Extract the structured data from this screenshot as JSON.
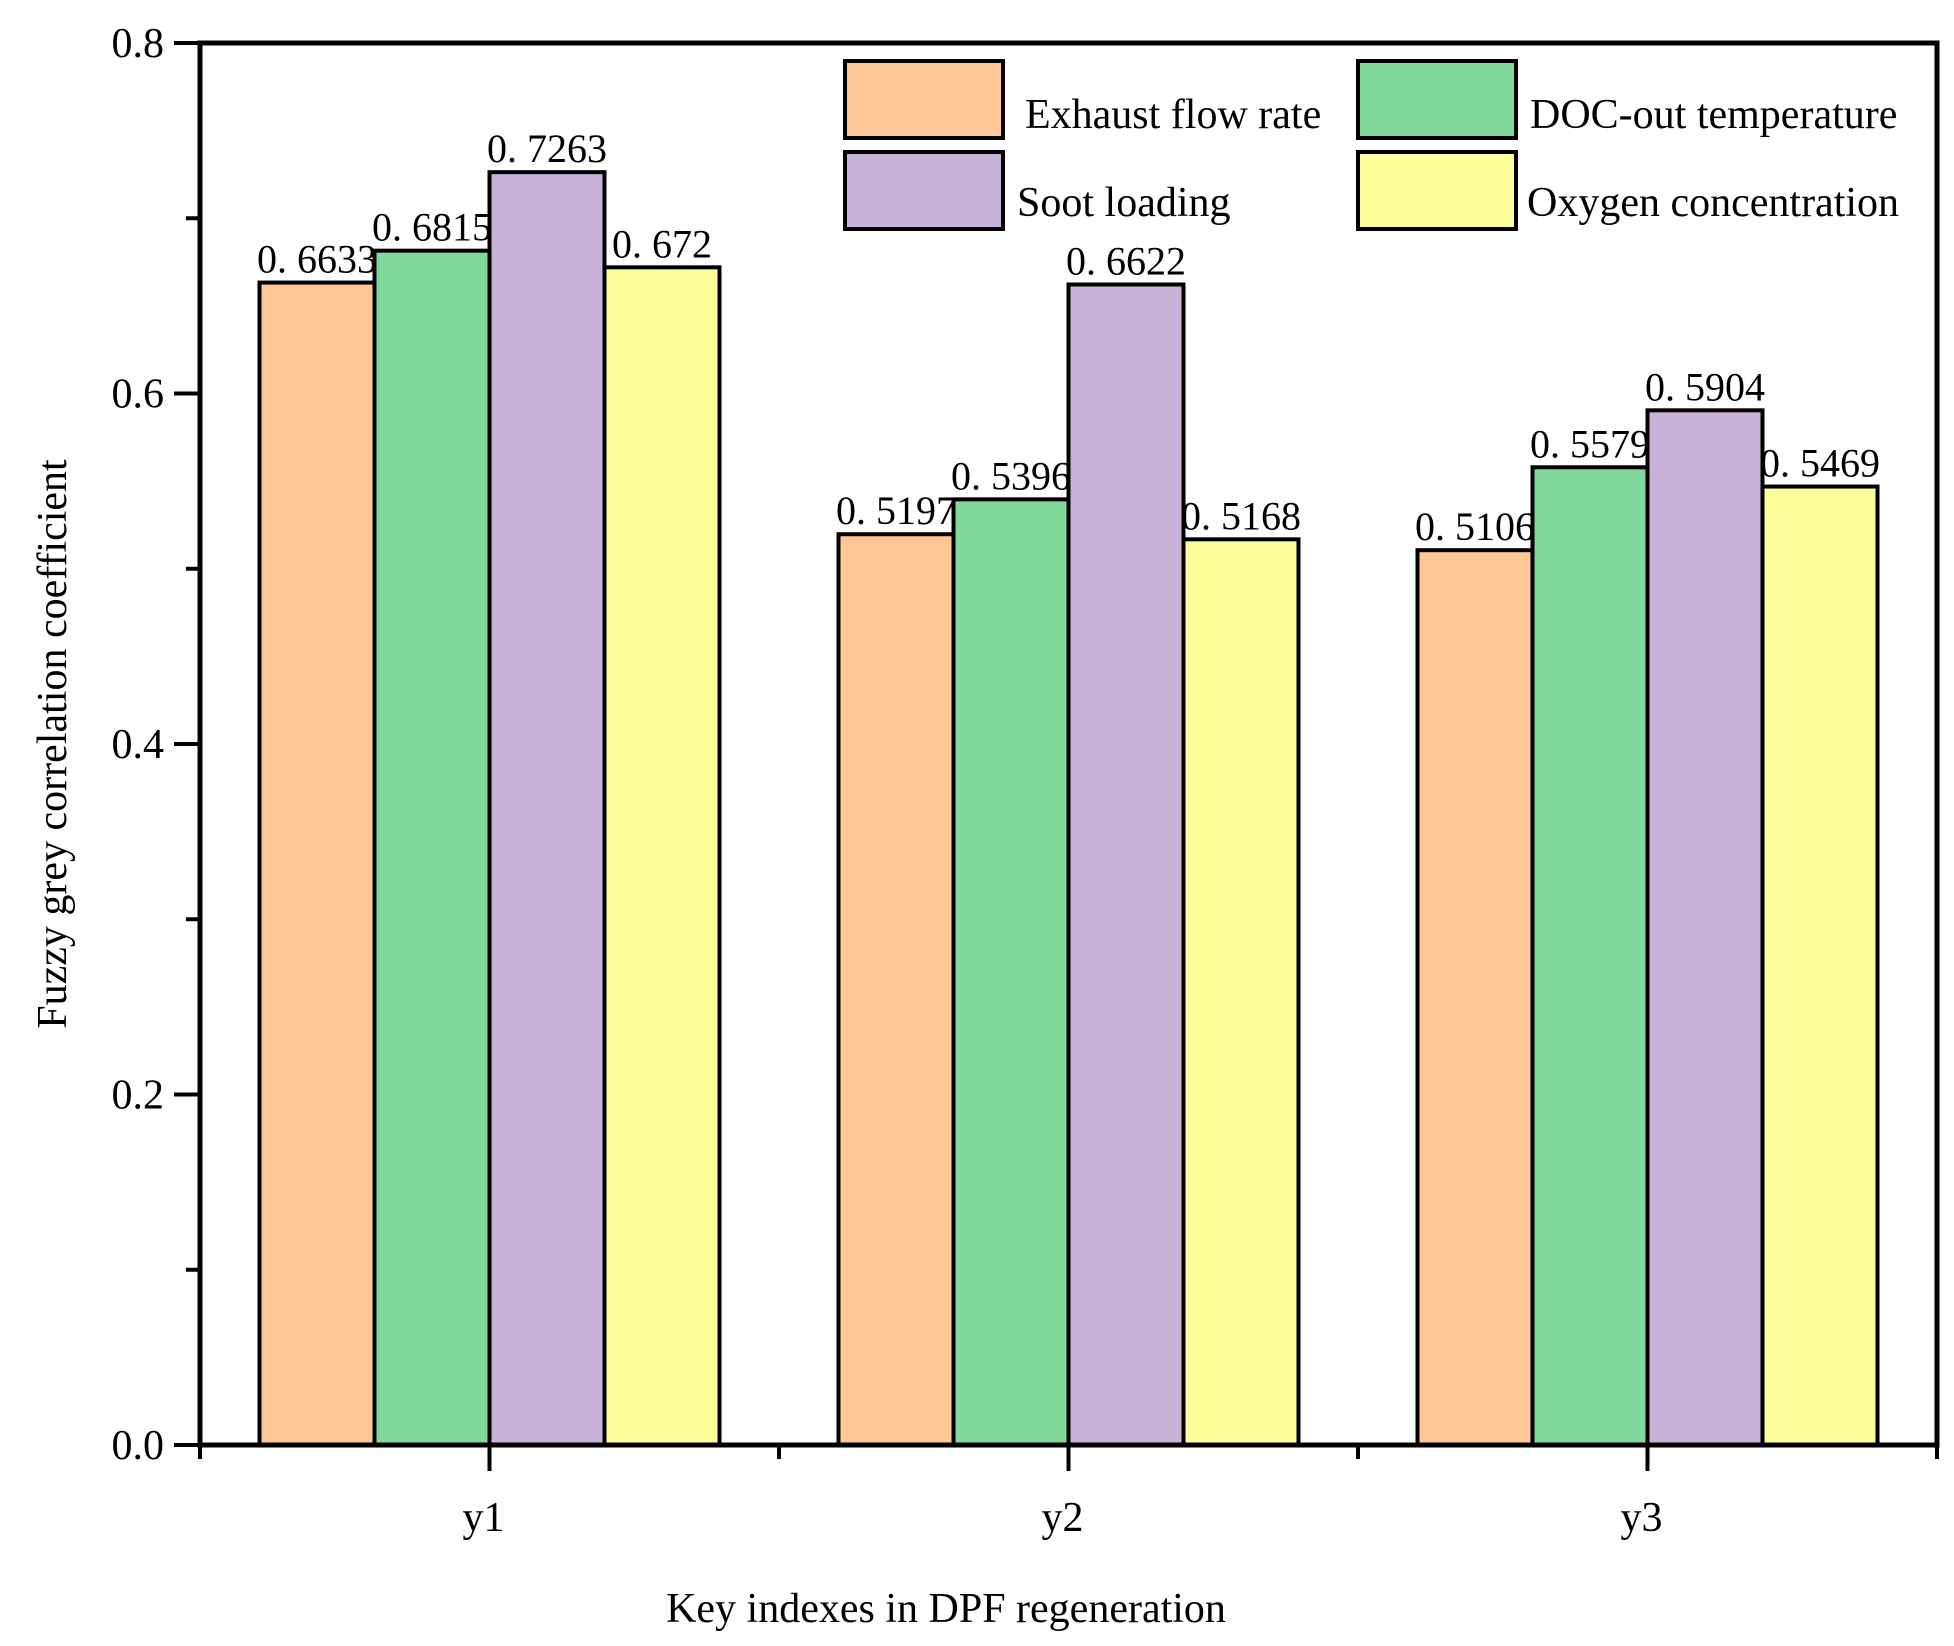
{
  "chart_data": {
    "type": "bar",
    "title": "",
    "xlabel": "Key indexes in DPF regeneration",
    "ylabel": "Fuzzy grey correlation coefficient",
    "ylim": [
      0,
      0.8
    ],
    "yticks": [
      0.0,
      0.2,
      0.4,
      0.6,
      0.8
    ],
    "ytick_labels": [
      "0.0",
      "0.2",
      "0.4",
      "0.6",
      "0.8"
    ],
    "categories": [
      "y1",
      "y2",
      "y3"
    ],
    "series": [
      {
        "name": "Exhaust flow rate",
        "color": "#FFC795",
        "values": [
          0.6633,
          0.5197,
          0.5106
        ],
        "labels": [
          "0. 6633",
          "0. 5197",
          "0. 5106"
        ]
      },
      {
        "name": "DOC-out temperature",
        "color": "#80D99A",
        "values": [
          0.6815,
          0.5396,
          0.5579
        ],
        "labels": [
          "0. 6815",
          "0. 5396",
          "0. 5579"
        ]
      },
      {
        "name": "Soot loading",
        "color": "#C8B2D7",
        "values": [
          0.7263,
          0.6622,
          0.5904
        ],
        "labels": [
          "0. 7263",
          "0. 6622",
          "0. 5904"
        ]
      },
      {
        "name": "Oxygen concentration",
        "color": "#FFFF99",
        "values": [
          0.672,
          0.5168,
          0.5469
        ],
        "labels": [
          "0. 672",
          "0. 5168",
          "0. 5469"
        ]
      }
    ],
    "legend_position": "top-right",
    "grid": false
  }
}
